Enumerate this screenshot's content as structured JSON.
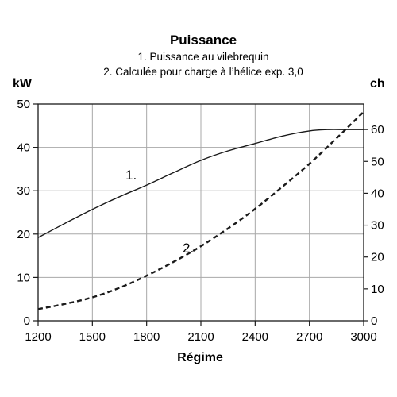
{
  "chart_data": {
    "type": "line",
    "title": "Puissance",
    "subtitle": [
      "1. Puissance au vilebrequin",
      "2. Calculée pour charge à l’hélice exp. 3,0"
    ],
    "xlabel": "Régime",
    "ylabel_left": "kW",
    "ylabel_right": "ch",
    "xlim": [
      1200,
      3000
    ],
    "ylim_left": [
      0,
      50
    ],
    "ylim_right": [
      0,
      68
    ],
    "x_ticks": [
      "1200",
      "1500",
      "1800",
      "2100",
      "2400",
      "2700",
      "3000"
    ],
    "y_ticks_left": [
      "0",
      "10",
      "20",
      "30",
      "40",
      "50"
    ],
    "y_ticks_right": [
      "0",
      "10",
      "20",
      "30",
      "40",
      "50",
      "60"
    ],
    "grid": true,
    "series": [
      {
        "name": "1.",
        "style": "solid",
        "color": "#1a1a1a",
        "x": [
          1200,
          1350,
          1500,
          1650,
          1800,
          1950,
          2100,
          2250,
          2400,
          2550,
          2700,
          2800,
          2900,
          3000
        ],
        "y": [
          19.2,
          22.5,
          25.7,
          28.6,
          31.3,
          34.2,
          37.0,
          39.2,
          40.9,
          42.6,
          43.8,
          44.1,
          44.1,
          44.1
        ]
      },
      {
        "name": "2.",
        "style": "dashed",
        "color": "#1a1a1a",
        "x": [
          1200,
          1350,
          1500,
          1650,
          1800,
          1950,
          2100,
          2250,
          2400,
          2550,
          2700,
          2850,
          3000
        ],
        "y": [
          2.7,
          3.9,
          5.4,
          7.6,
          10.4,
          13.6,
          17.2,
          21.3,
          25.8,
          30.9,
          36.2,
          42.1,
          48.2
        ]
      }
    ]
  }
}
